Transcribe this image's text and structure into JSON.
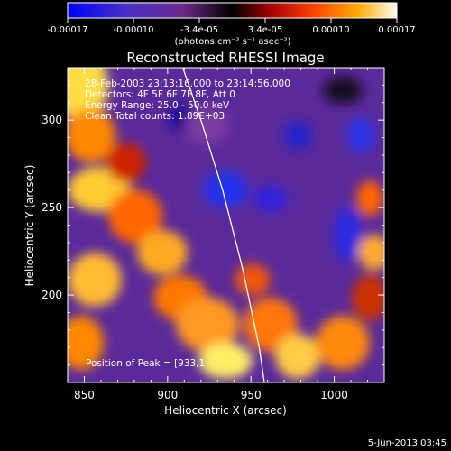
{
  "colorbar": {
    "ticks": [
      "-0.00017",
      "-0.00010",
      "-3.4e-05",
      "3.4e-05",
      "0.00010",
      "0.00017"
    ],
    "unit_label": "(photons cm⁻² s⁻¹ asec⁻²)",
    "colors": [
      "#0000ff",
      "#5a3a9e",
      "#7a2a6a",
      "#000000",
      "#a00000",
      "#ff4400",
      "#ffaa00",
      "#ffff88",
      "#ffffff"
    ]
  },
  "chart_data": {
    "type": "heatmap",
    "title": "Reconstructed RHESSI Image",
    "xlabel": "Heliocentric X (arcsec)",
    "ylabel": "Heliocentric Y (arcsec)",
    "xlim": [
      840,
      1030
    ],
    "ylim": [
      150,
      330
    ],
    "xticks": [
      850,
      900,
      950,
      1000
    ],
    "yticks": [
      200,
      250,
      300
    ],
    "xtick_labels": [
      "850",
      "900",
      "950",
      "1000"
    ],
    "ytick_labels": [
      "200",
      "250",
      "300"
    ],
    "annotations": [
      "28-Feb-2003 23:13:16.000 to 23:14:56.000",
      "Detectors: 4F 5F 6F 7F 8F, Att 0",
      "Energy Range: 25.0 - 50.0 keV",
      "Clean    Total counts: 1.89E+03"
    ],
    "peak_label": "Position of Peak = [933,1",
    "limb_curve": [
      [
        908,
        333
      ],
      [
        920,
        300
      ],
      [
        933,
        260
      ],
      [
        945,
        215
      ],
      [
        955,
        170
      ],
      [
        958,
        150
      ]
    ]
  },
  "footer": {
    "date": "5-Jun-2013 03:45"
  }
}
